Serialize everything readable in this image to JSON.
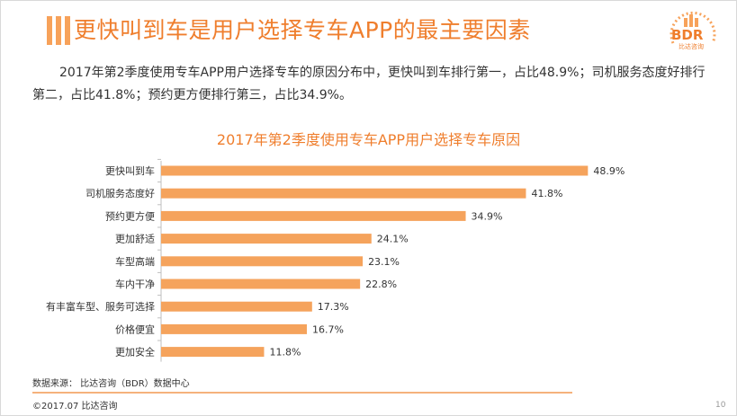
{
  "page": {
    "title": "更快叫到车是用户选择专车APP的最主要因素",
    "description": "2017年第2季度使用专车APP用户选择专车的原因分布中，更快叫到车排行第一，占比48.9%；司机服务态度好排行第二，占比41.8%；预约更方便排行第三，占比34.9%。",
    "source": "数据来源： 比达咨询（BDR）数据中心",
    "copyright": "©2017.07   比达咨询",
    "page_number": "10",
    "logo_text": "BDR",
    "logo_sub": "比达咨询",
    "accent_color": "#ef7e2d",
    "bar_color": "#f5a35c"
  },
  "chart_data": {
    "type": "bar",
    "orientation": "horizontal",
    "title": "2017年第2季度使用专车APP用户选择专车原因",
    "categories": [
      "更快叫到车",
      "司机服务态度好",
      "预约更方便",
      "更加舒适",
      "车型高端",
      "车内干净",
      "有丰富车型、服务可选择",
      "价格便宜",
      "更加安全"
    ],
    "values": [
      48.9,
      41.8,
      34.9,
      24.1,
      23.1,
      22.8,
      17.3,
      16.7,
      11.8
    ],
    "value_labels": [
      "48.9%",
      "41.8%",
      "34.9%",
      "24.1%",
      "23.1%",
      "22.8%",
      "17.3%",
      "16.7%",
      "11.8%"
    ],
    "xlim": [
      0,
      50
    ],
    "grid": false,
    "legend": "none"
  }
}
